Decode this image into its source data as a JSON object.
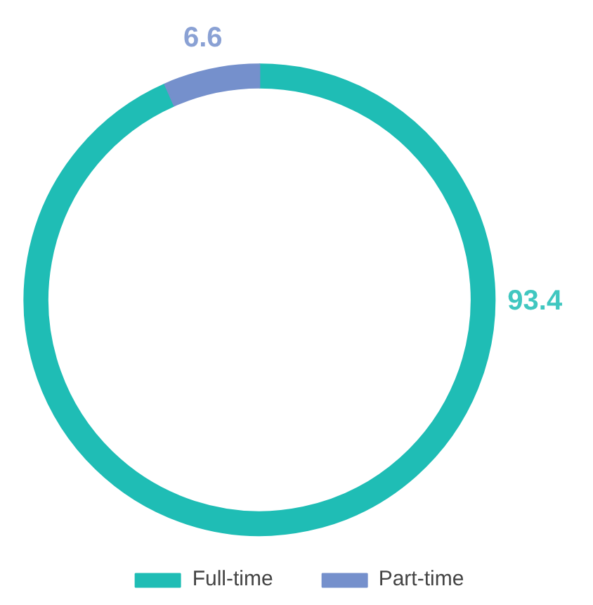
{
  "chart_data": {
    "type": "donut",
    "categories": [
      "Full-time",
      "Part-time"
    ],
    "values": [
      93.4,
      6.6
    ],
    "colors": [
      "#1fbdb5",
      "#7590cc"
    ],
    "data_labels": true,
    "legend": "bottom"
  }
}
